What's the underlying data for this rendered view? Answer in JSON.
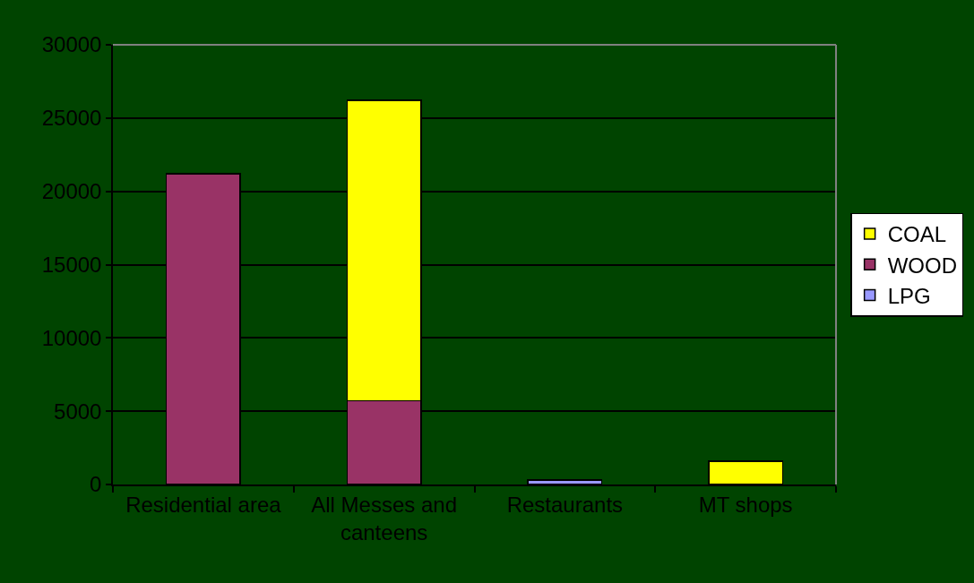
{
  "chart_data": {
    "type": "bar",
    "categories": [
      "Residential area",
      "All Messes and canteens",
      "Restaurants",
      "MT shops"
    ],
    "stacked": true,
    "series": [
      {
        "name": "LPG",
        "color": "#9999ff",
        "values": [
          null,
          null,
          300,
          null
        ]
      },
      {
        "name": "WOOD",
        "color": "#993366",
        "values": [
          21200,
          5700,
          null,
          null
        ]
      },
      {
        "name": "COAL",
        "color": "#ffff00",
        "values": [
          null,
          20500,
          null,
          1600
        ]
      }
    ],
    "ylim": [
      0,
      30000
    ],
    "yticks": [
      0,
      5000,
      10000,
      15000,
      20000,
      25000,
      30000
    ],
    "grid": "y",
    "legend": "right"
  }
}
